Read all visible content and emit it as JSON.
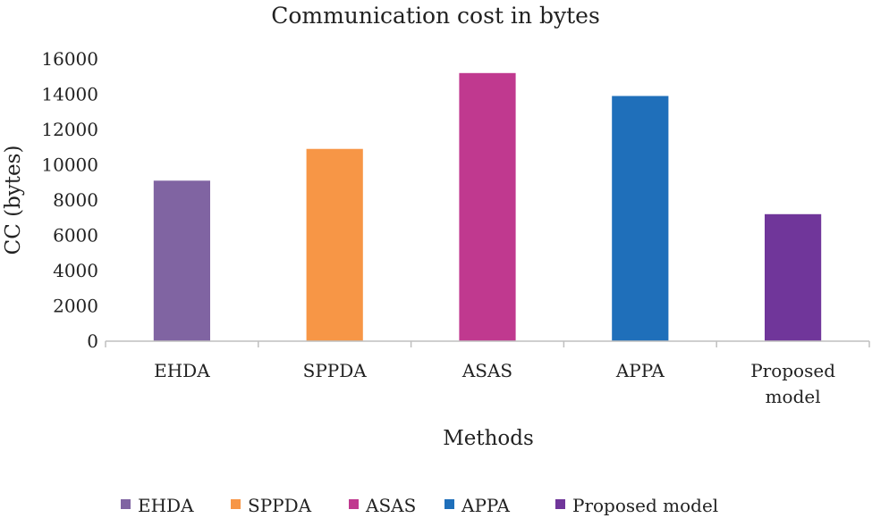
{
  "chart_data": {
    "type": "bar",
    "title": "Communication cost in bytes",
    "xlabel": "Methods",
    "ylabel": "CC (bytes)",
    "ylim": [
      0,
      16000
    ],
    "yticks": [
      0,
      2000,
      4000,
      6000,
      8000,
      10000,
      12000,
      14000,
      16000
    ],
    "ytick_labels": [
      "0",
      "2000",
      "4000",
      "6000",
      "8000",
      "10000",
      "12000",
      "14000",
      "16000"
    ],
    "grid": false,
    "legend": "bottom",
    "categories": [
      "EHDA",
      "SPPDA",
      "ASAS",
      "APPA",
      "Proposed model"
    ],
    "category_labels": [
      [
        "EHDA"
      ],
      [
        "SPPDA"
      ],
      [
        "ASAS"
      ],
      [
        "APPA"
      ],
      [
        "Proposed",
        "model"
      ]
    ],
    "values": [
      9100,
      10900,
      15200,
      13900,
      7200
    ],
    "colors": [
      "#8064a2",
      "#f79646",
      "#c0398f",
      "#1f6fba",
      "#70369a"
    ]
  }
}
